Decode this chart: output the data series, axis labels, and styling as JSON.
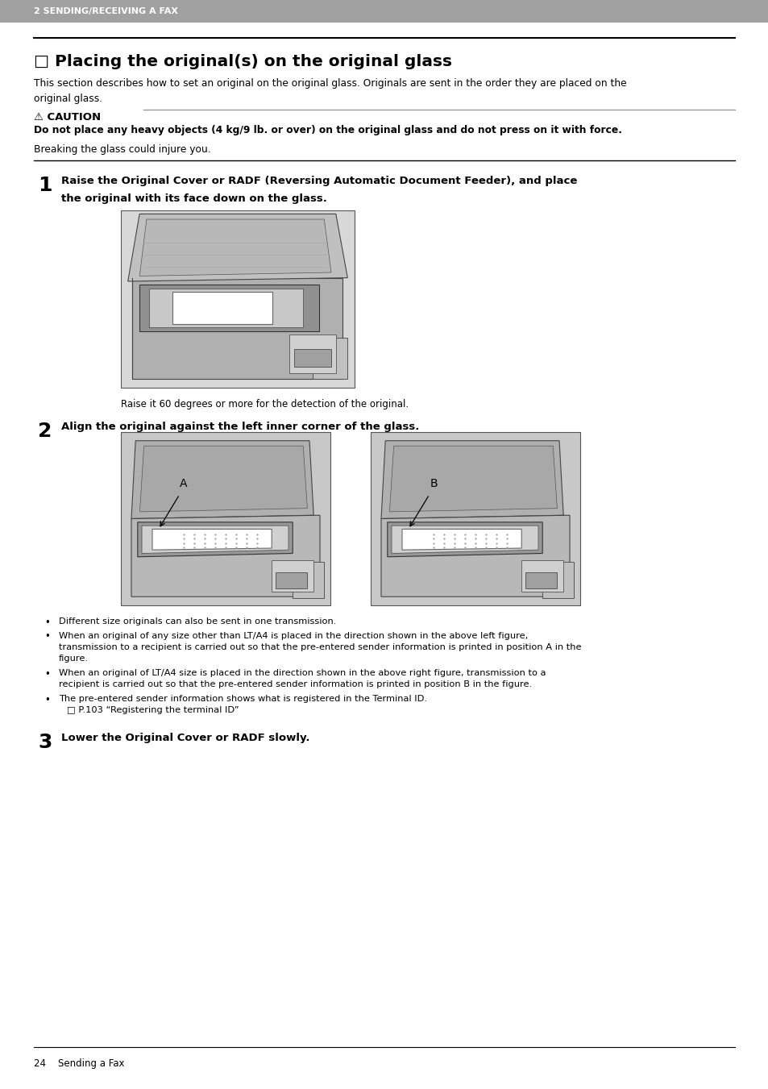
{
  "header_bg": "#a0a0a0",
  "header_text": "2 SENDING/RECEIVING A FAX",
  "header_text_color": "#ffffff",
  "page_bg": "#ffffff",
  "title_text": "□ Placing the original(s) on the original glass",
  "intro_text": "This section describes how to set an original on the original glass. Originals are sent in the order they are placed on the\noriginal glass.",
  "caution_symbol": "⚠ CAUTION",
  "caution_bold": "Do not place any heavy objects (4 kg/9 lb. or over) on the original glass and do not press on it with force.",
  "caution_normal": "Breaking the glass could injure you.",
  "step1_num": "1",
  "step1_text_line1": "Raise the Original Cover or RADF (Reversing Automatic Document Feeder), and place",
  "step1_text_line2": "the original with its face down on the glass.",
  "step1_caption": "Raise it 60 degrees or more for the detection of the original.",
  "step2_num": "2",
  "step2_text": "Align the original against the left inner corner of the glass.",
  "label_A": "A",
  "label_B": "B",
  "bullet1": "Different size originals can also be sent in one transmission.",
  "bullet2_l1": "When an original of any size other than LT/A4 is placed in the direction shown in the above left figure,",
  "bullet2_l2": "transmission to a recipient is carried out so that the pre-entered sender information is printed in position A in the",
  "bullet2_l3": "figure.",
  "bullet3_l1": "When an original of LT/A4 size is placed in the direction shown in the above right figure, transmission to a",
  "bullet3_l2": "recipient is carried out so that the pre-entered sender information is printed in position B in the figure.",
  "bullet4_l1": "The pre-entered sender information shows what is registered in the Terminal ID.",
  "bullet4_l2": "□ P.103 “Registering the terminal ID”",
  "step3_num": "3",
  "step3_text": "Lower the Original Cover or RADF slowly.",
  "footer_left": "24    Sending a Fax",
  "gray_dark": "#808080",
  "gray_mid": "#a0a0a0",
  "gray_light": "#c8c8c8",
  "gray_very_light": "#e8e8e8",
  "white": "#ffffff",
  "black": "#000000",
  "line_gray": "#999999"
}
